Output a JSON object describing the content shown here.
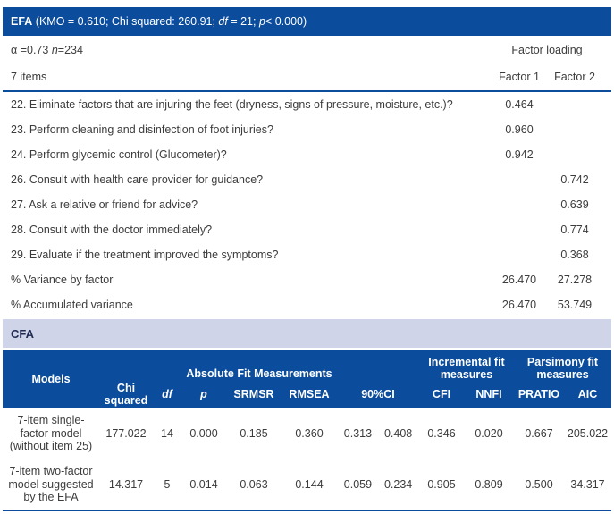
{
  "colors": {
    "accent_blue": "#0b4c9c",
    "band_lavender": "#d0d4e8",
    "text_dark": "#3c3c3c",
    "cfa_label_navy": "#1e2a52"
  },
  "efa": {
    "header": {
      "bold": "EFA",
      "seg1": " (KMO = 0.610; Chi squared: 260.91; ",
      "df": "df",
      "seg2": " = 21; ",
      "p": "p",
      "seg3": "< 0.000)"
    },
    "alpha": {
      "seg1": "α =0.73 ",
      "n": "n",
      "seg2": "=234"
    },
    "factor_loading_label": "Factor loading",
    "items_header": "7 items",
    "factor1_label": "Factor 1",
    "factor2_label": "Factor 2",
    "items": [
      {
        "label": "22. Eliminate factors that are injuring the feet (dryness, signs of pressure, moisture, etc.)?",
        "f1": "0.464",
        "f2": ""
      },
      {
        "label": "23. Perform cleaning and disinfection of foot injuries?",
        "f1": "0.960",
        "f2": ""
      },
      {
        "label": "24. Perform glycemic control (Glucometer)?",
        "f1": "0.942",
        "f2": ""
      },
      {
        "label": "26. Consult with health care provider for guidance?",
        "f1": "",
        "f2": "0.742"
      },
      {
        "label": "27. Ask a relative or friend for advice?",
        "f1": "",
        "f2": "0.639"
      },
      {
        "label": "28. Consult with the doctor immediately?",
        "f1": "",
        "f2": "0.774"
      },
      {
        "label": "29. Evaluate if the treatment improved the symptoms?",
        "f1": "",
        "f2": "0.368"
      }
    ],
    "summary": [
      {
        "label": "% Variance by factor",
        "f1": "26.470",
        "f2": "27.278"
      },
      {
        "label": "% Accumulated variance",
        "f1": "26.470",
        "f2": "53.749"
      }
    ]
  },
  "cfa": {
    "section_label": "CFA",
    "header": {
      "models": "Models",
      "group_absolute": "Absolute Fit Measurements",
      "group_incremental": "Incremental fit measures",
      "group_parsimony": "Parsimony fit measures",
      "cols": [
        "Chi squared",
        "df",
        "p",
        "SRMSR",
        "RMSEA",
        "90%CI",
        "CFI",
        "NNFI",
        "PRATIO",
        "AIC"
      ]
    },
    "rows": [
      {
        "model": "7-item single-factor model (without item 25)",
        "values": [
          "177.022",
          "14",
          "0.000",
          "0.185",
          "0.360",
          "0.313 – 0.408",
          "0.346",
          "0.020",
          "0.667",
          "205.022"
        ]
      },
      {
        "model": "7-item two-factor model suggested by the EFA",
        "values": [
          "14.317",
          "5",
          "0.014",
          "0.063",
          "0.144",
          "0.059 – 0.234",
          "0.905",
          "0.809",
          "0.500",
          "34.317"
        ]
      }
    ]
  }
}
